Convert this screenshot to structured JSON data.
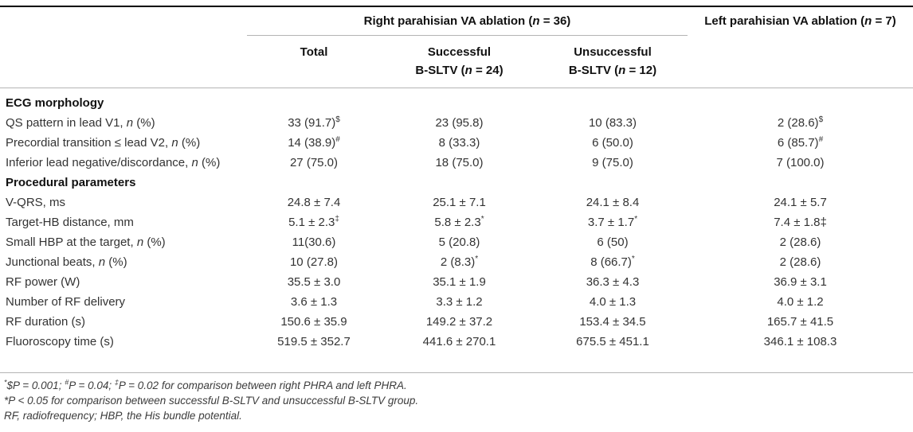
{
  "page": {
    "background": "#ffffff",
    "text_color": "#333333",
    "header_color": "#111111",
    "rule_dark": "#000000",
    "rule_light": "#b4b4b4"
  },
  "table": {
    "groups": {
      "right": [
        {
          "t": "Right parahisian VA ablation ("
        },
        {
          "t": "n",
          "it": true
        },
        {
          "t": " = 36)"
        }
      ],
      "left": [
        {
          "t": "Left parahisian VA ablation ("
        },
        {
          "t": "n",
          "it": true
        },
        {
          "t": " = 7)"
        }
      ]
    },
    "columns": [
      {
        "id": "total",
        "line1": [
          {
            "t": "Total"
          }
        ],
        "line2": []
      },
      {
        "id": "successful-bsltv",
        "line1": [
          {
            "t": "Successful"
          }
        ],
        "line2": [
          {
            "t": "B-SLTV ("
          },
          {
            "t": "n",
            "it": true
          },
          {
            "t": " = 24)"
          }
        ]
      },
      {
        "id": "unsuccessful-bsltv",
        "line1": [
          {
            "t": "Unsuccessful"
          }
        ],
        "line2": [
          {
            "t": "B-SLTV ("
          },
          {
            "t": "n",
            "it": true
          },
          {
            "t": " = 12)"
          }
        ]
      }
    ],
    "rows": [
      {
        "type": "section",
        "label": [
          {
            "t": "ECG morphology"
          }
        ]
      },
      {
        "type": "data",
        "label": [
          {
            "t": "QS pattern in lead V1, "
          },
          {
            "t": "n",
            "it": true
          },
          {
            "t": " (%)"
          }
        ],
        "cells": [
          [
            {
              "t": "33 (91.7)"
            },
            {
              "t": "$",
              "sup": true
            }
          ],
          [
            {
              "t": "23 (95.8)"
            }
          ],
          [
            {
              "t": "10 (83.3)"
            }
          ],
          [
            {
              "t": "2 (28.6)"
            },
            {
              "t": "$",
              "sup": true
            }
          ]
        ]
      },
      {
        "type": "data",
        "label": [
          {
            "t": "Precordial transition ≤ lead V2, "
          },
          {
            "t": "n",
            "it": true
          },
          {
            "t": " (%)"
          }
        ],
        "cells": [
          [
            {
              "t": "14 (38.9)"
            },
            {
              "t": "#",
              "sup": true
            }
          ],
          [
            {
              "t": "8 (33.3)"
            }
          ],
          [
            {
              "t": "6 (50.0)"
            }
          ],
          [
            {
              "t": "6 (85.7)"
            },
            {
              "t": "#",
              "sup": true
            }
          ]
        ]
      },
      {
        "type": "data",
        "label": [
          {
            "t": "Inferior lead negative/discordance, "
          },
          {
            "t": "n",
            "it": true
          },
          {
            "t": " (%)"
          }
        ],
        "cells": [
          [
            {
              "t": "27 (75.0)"
            }
          ],
          [
            {
              "t": "18 (75.0)"
            }
          ],
          [
            {
              "t": "9 (75.0)"
            }
          ],
          [
            {
              "t": "7 (100.0)"
            }
          ]
        ]
      },
      {
        "type": "section",
        "label": [
          {
            "t": "Procedural parameters"
          }
        ]
      },
      {
        "type": "data",
        "label": [
          {
            "t": "V-QRS, ms"
          }
        ],
        "cells": [
          [
            {
              "t": "24.8 ± 7.4"
            }
          ],
          [
            {
              "t": "25.1 ± 7.1"
            }
          ],
          [
            {
              "t": "24.1 ± 8.4"
            }
          ],
          [
            {
              "t": "24.1 ± 5.7"
            }
          ]
        ]
      },
      {
        "type": "data",
        "label": [
          {
            "t": "Target-HB distance, mm"
          }
        ],
        "cells": [
          [
            {
              "t": "5.1 ± 2.3"
            },
            {
              "t": "‡",
              "sup": true
            }
          ],
          [
            {
              "t": "5.8 ± 2.3"
            },
            {
              "t": "*",
              "sup": true
            }
          ],
          [
            {
              "t": "3.7 ± 1.7"
            },
            {
              "t": "*",
              "sup": true
            }
          ],
          [
            {
              "t": "7.4 ± 1.8‡"
            }
          ]
        ]
      },
      {
        "type": "data",
        "label": [
          {
            "t": "Small HBP at the target, "
          },
          {
            "t": "n",
            "it": true
          },
          {
            "t": " (%)"
          }
        ],
        "cells": [
          [
            {
              "t": "11(30.6)"
            }
          ],
          [
            {
              "t": "5 (20.8)"
            }
          ],
          [
            {
              "t": "6 (50)"
            }
          ],
          [
            {
              "t": "2 (28.6)"
            }
          ]
        ]
      },
      {
        "type": "data",
        "label": [
          {
            "t": "Junctional beats, "
          },
          {
            "t": "n",
            "it": true
          },
          {
            "t": " (%)"
          }
        ],
        "cells": [
          [
            {
              "t": "10 (27.8)"
            }
          ],
          [
            {
              "t": "2 (8.3)"
            },
            {
              "t": "*",
              "sup": true
            }
          ],
          [
            {
              "t": "8 (66.7)"
            },
            {
              "t": "*",
              "sup": true
            }
          ],
          [
            {
              "t": "2 (28.6)"
            }
          ]
        ]
      },
      {
        "type": "data",
        "label": [
          {
            "t": "RF power (W)"
          }
        ],
        "cells": [
          [
            {
              "t": "35.5 ± 3.0"
            }
          ],
          [
            {
              "t": "35.1 ± 1.9"
            }
          ],
          [
            {
              "t": "36.3 ± 4.3"
            }
          ],
          [
            {
              "t": "36.9 ± 3.1"
            }
          ]
        ]
      },
      {
        "type": "data",
        "label": [
          {
            "t": "Number of RF delivery"
          }
        ],
        "cells": [
          [
            {
              "t": "3.6 ± 1.3"
            }
          ],
          [
            {
              "t": "3.3 ± 1.2"
            }
          ],
          [
            {
              "t": "4.0 ± 1.3"
            }
          ],
          [
            {
              "t": "4.0 ± 1.2"
            }
          ]
        ]
      },
      {
        "type": "data",
        "label": [
          {
            "t": "RF duration (s)"
          }
        ],
        "cells": [
          [
            {
              "t": "150.6 ± 35.9"
            }
          ],
          [
            {
              "t": "149.2 ± 37.2"
            }
          ],
          [
            {
              "t": "153.4 ± 34.5"
            }
          ],
          [
            {
              "t": "165.7 ± 41.5"
            }
          ]
        ]
      },
      {
        "type": "data",
        "label": [
          {
            "t": "Fluoroscopy time (s)"
          }
        ],
        "cells": [
          [
            {
              "t": "519.5 ± 352.7"
            }
          ],
          [
            {
              "t": "441.6 ± 270.1"
            }
          ],
          [
            {
              "t": "675.5 ± 451.1"
            }
          ],
          [
            {
              "t": "346.1 ± 108.3"
            }
          ]
        ]
      }
    ]
  },
  "footnotes": [
    [
      {
        "t": "*",
        "sup": true
      },
      {
        "t": "$P = 0.001; "
      },
      {
        "t": "#",
        "sup": true
      },
      {
        "t": "P = 0.04; "
      },
      {
        "t": "‡",
        "sup": true
      },
      {
        "t": "P = 0.02 for comparison between right PHRA and left PHRA."
      }
    ],
    [
      {
        "t": "*P < 0.05 for comparison between successful B-SLTV and unsuccessful B-SLTV group."
      }
    ],
    [
      {
        "t": "RF, radiofrequency; HBP, the His bundle potential."
      }
    ]
  ]
}
